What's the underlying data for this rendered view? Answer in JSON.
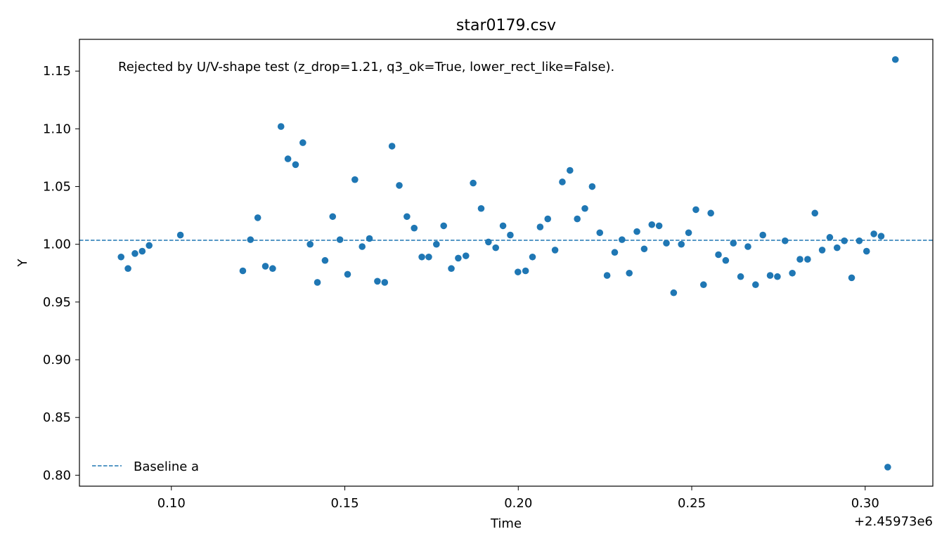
{
  "chart_data": {
    "type": "scatter",
    "title": "star0179.csv",
    "xlabel": "Time",
    "ylabel": "Y",
    "x_offset_text": "+2.45973e6",
    "annotation": "Rejected by U/V-shape test (z_drop=1.21, q3_ok=True, lower_rect_like=False).",
    "xlim": [
      0.0735,
      0.3195
    ],
    "ylim": [
      0.7905,
      1.1775
    ],
    "x_ticks": [
      0.1,
      0.15,
      0.2,
      0.25,
      0.3
    ],
    "x_tick_labels": [
      "0.10",
      "0.15",
      "0.20",
      "0.25",
      "0.30"
    ],
    "y_ticks": [
      0.8,
      0.85,
      0.9,
      0.95,
      1.0,
      1.05,
      1.1,
      1.15
    ],
    "y_tick_labels": [
      "0.80",
      "0.85",
      "0.90",
      "0.95",
      "1.00",
      "1.05",
      "1.10",
      "1.15"
    ],
    "grid": false,
    "legend_position": "lower-left",
    "point_color": "#1f77b4",
    "baseline": {
      "name": "Baseline a",
      "y": 1.0035,
      "color": "#1f77b4",
      "style": "dashed"
    },
    "x": [
      0.0855,
      0.0875,
      0.0895,
      0.0916,
      0.0936,
      0.1026,
      0.1206,
      0.1228,
      0.1249,
      0.1271,
      0.1292,
      0.1316,
      0.1336,
      0.1358,
      0.1379,
      0.14,
      0.1421,
      0.1443,
      0.1465,
      0.1486,
      0.1508,
      0.1529,
      0.155,
      0.1571,
      0.1594,
      0.1615,
      0.1636,
      0.1657,
      0.1679,
      0.17,
      0.1722,
      0.1742,
      0.1764,
      0.1785,
      0.1807,
      0.1827,
      0.1849,
      0.187,
      0.1893,
      0.1914,
      0.1935,
      0.1956,
      0.1977,
      0.1999,
      0.2021,
      0.2041,
      0.2063,
      0.2085,
      0.2106,
      0.2127,
      0.2149,
      0.217,
      0.2192,
      0.2213,
      0.2235,
      0.2256,
      0.2278,
      0.2299,
      0.232,
      0.2342,
      0.2363,
      0.2385,
      0.2406,
      0.2427,
      0.2448,
      0.247,
      0.2491,
      0.2512,
      0.2534,
      0.2555,
      0.2577,
      0.2598,
      0.262,
      0.2641,
      0.2662,
      0.2684,
      0.2705,
      0.2726,
      0.2747,
      0.2769,
      0.279,
      0.2812,
      0.2834,
      0.2855,
      0.2876,
      0.2898,
      0.2919,
      0.294,
      0.2961,
      0.2983,
      0.3004,
      0.3025,
      0.3046,
      0.3065,
      0.3087
    ],
    "y": [
      0.989,
      0.979,
      0.992,
      0.994,
      0.999,
      1.008,
      0.977,
      1.004,
      1.023,
      0.981,
      0.979,
      1.102,
      1.074,
      1.069,
      1.088,
      1.0,
      0.967,
      0.986,
      1.024,
      1.004,
      0.974,
      1.056,
      0.998,
      1.005,
      0.968,
      0.967,
      1.085,
      1.051,
      1.024,
      1.014,
      0.989,
      0.989,
      1.0,
      1.016,
      0.979,
      0.988,
      0.99,
      1.053,
      1.031,
      1.002,
      0.997,
      1.016,
      1.008,
      0.976,
      0.977,
      0.989,
      1.015,
      1.022,
      0.995,
      1.054,
      1.064,
      1.022,
      1.031,
      1.05,
      1.01,
      0.973,
      0.993,
      1.004,
      0.975,
      1.011,
      0.996,
      1.017,
      1.016,
      1.001,
      0.958,
      1.0,
      1.01,
      1.03,
      0.965,
      1.027,
      0.991,
      0.986,
      1.001,
      0.972,
      0.998,
      0.965,
      1.008,
      0.973,
      0.972,
      1.003,
      0.975,
      0.987,
      0.987,
      1.027,
      0.995,
      1.006,
      0.997,
      1.003,
      0.971,
      1.003,
      0.994,
      1.009,
      1.007,
      0.807,
      1.16
    ]
  }
}
